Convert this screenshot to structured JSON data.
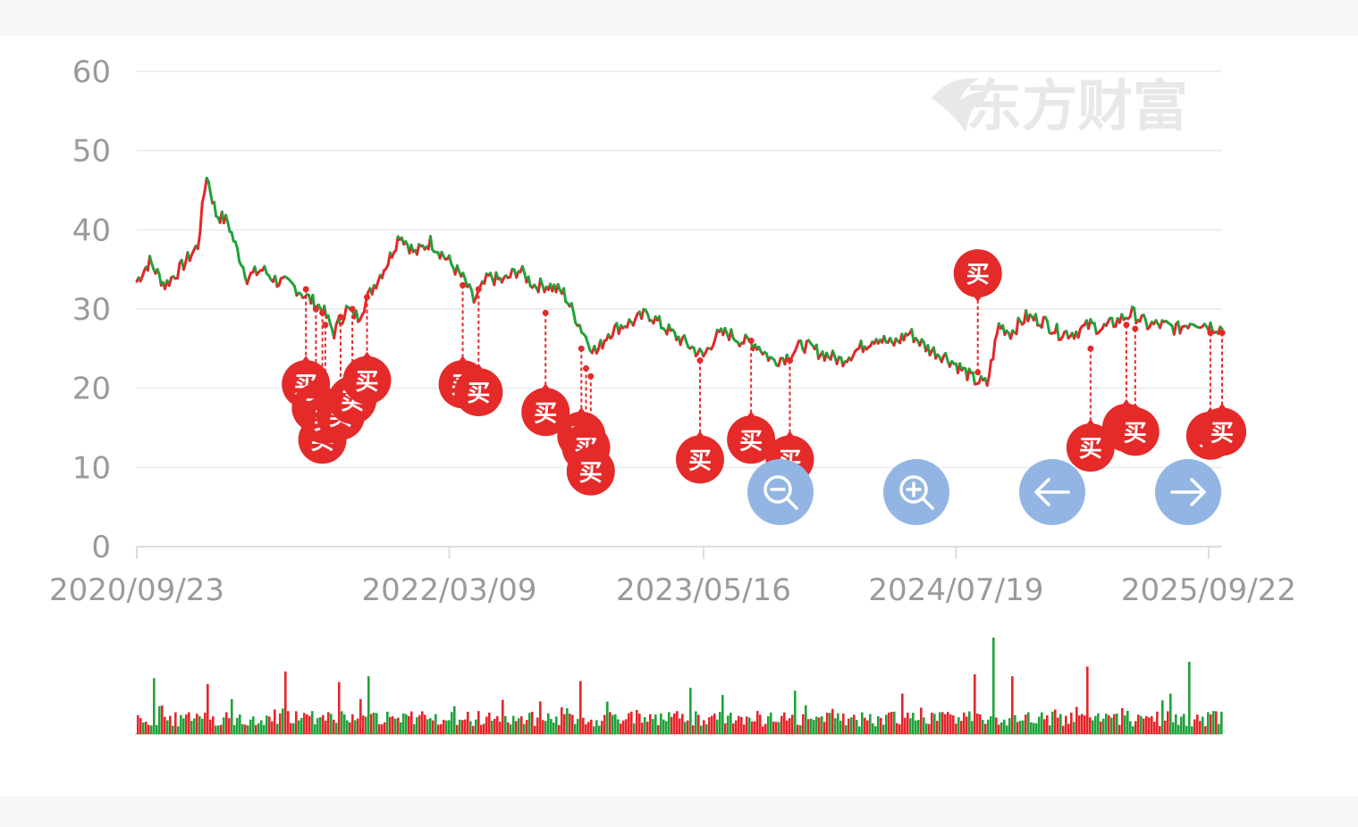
{
  "watermark": {
    "text": "东方财富"
  },
  "controls": {
    "zoom_out": "zoom-out",
    "zoom_in": "zoom-in",
    "prev": "arrow-left",
    "next": "arrow-right",
    "color": "#93b5e3"
  },
  "colors": {
    "up": "#e5262a",
    "down": "#1fa33a",
    "marker": "#e52a2a",
    "grid": "#eeeeee"
  },
  "chart_data": {
    "type": "line",
    "title": "",
    "xlabel": "",
    "ylabel": "",
    "ylim": [
      0,
      60
    ],
    "y_ticks": [
      "0",
      "10",
      "20",
      "30",
      "40",
      "50",
      "60"
    ],
    "x_ticks": [
      "2020/09/23",
      "2022/03/09",
      "2023/05/16",
      "2024/07/19",
      "2025/09/22"
    ],
    "x_range": [
      "2020/09/23",
      "2025/10/15"
    ],
    "grid": true,
    "legend": "none",
    "series": [
      {
        "values": [
          [
            "2020/09/23",
            33.5
          ],
          [
            "2020/10/15",
            36.0
          ],
          [
            "2020/11/10",
            33.0
          ],
          [
            "2020/12/05",
            35.0
          ],
          [
            "2021/01/05",
            38.0
          ],
          [
            "2021/01/20",
            47.0
          ],
          [
            "2021/02/05",
            42.0
          ],
          [
            "2021/02/25",
            41.0
          ],
          [
            "2021/03/10",
            38.0
          ],
          [
            "2021/03/30",
            34.0
          ],
          [
            "2021/04/25",
            35.0
          ],
          [
            "2021/05/20",
            33.5
          ],
          [
            "2021/06/15",
            33.0
          ],
          [
            "2021/07/10",
            31.5
          ],
          [
            "2021/08/05",
            30.0
          ],
          [
            "2021/08/25",
            27.0
          ],
          [
            "2021/09/15",
            30.0
          ],
          [
            "2021/10/05",
            29.0
          ],
          [
            "2021/11/01",
            33.0
          ],
          [
            "2021/11/25",
            36.0
          ],
          [
            "2021/12/15",
            39.5
          ],
          [
            "2022/01/10",
            37.0
          ],
          [
            "2022/02/05",
            38.5
          ],
          [
            "2022/03/09",
            36.0
          ],
          [
            "2022/04/05",
            33.5
          ],
          [
            "2022/04/20",
            31.0
          ],
          [
            "2022/05/15",
            34.0
          ],
          [
            "2022/06/10",
            33.5
          ],
          [
            "2022/07/05",
            35.0
          ],
          [
            "2022/08/01",
            33.0
          ],
          [
            "2022/08/25",
            33.0
          ],
          [
            "2022/09/20",
            32.0
          ],
          [
            "2022/10/10",
            29.0
          ],
          [
            "2022/10/31",
            26.0
          ],
          [
            "2022/11/15",
            24.5
          ],
          [
            "2022/12/05",
            27.0
          ],
          [
            "2022/12/30",
            28.0
          ],
          [
            "2023/01/20",
            28.5
          ],
          [
            "2023/02/10",
            29.5
          ],
          [
            "2023/03/05",
            28.0
          ],
          [
            "2023/03/31",
            26.5
          ],
          [
            "2023/04/20",
            25.5
          ],
          [
            "2023/05/16",
            24.0
          ],
          [
            "2023/06/05",
            26.5
          ],
          [
            "2023/06/25",
            27.0
          ],
          [
            "2023/07/20",
            26.0
          ],
          [
            "2023/08/15",
            25.5
          ],
          [
            "2023/09/10",
            23.5
          ],
          [
            "2023/10/05",
            24.0
          ],
          [
            "2023/11/01",
            25.5
          ],
          [
            "2023/12/01",
            24.5
          ],
          [
            "2024/01/05",
            23.5
          ],
          [
            "2024/02/05",
            25.0
          ],
          [
            "2024/03/05",
            26.5
          ],
          [
            "2024/04/01",
            25.5
          ],
          [
            "2024/05/01",
            27.0
          ],
          [
            "2024/06/01",
            25.0
          ],
          [
            "2024/07/01",
            24.0
          ],
          [
            "2024/07/19",
            23.0
          ],
          [
            "2024/08/20",
            21.0
          ],
          [
            "2024/09/10",
            20.5
          ],
          [
            "2024/09/30",
            28.0
          ],
          [
            "2024/10/20",
            27.0
          ],
          [
            "2024/11/15",
            29.0
          ],
          [
            "2024/12/15",
            28.5
          ],
          [
            "2025/01/10",
            27.0
          ],
          [
            "2025/02/05",
            27.0
          ],
          [
            "2025/03/05",
            28.0
          ],
          [
            "2025/03/25",
            27.5
          ],
          [
            "2025/04/20",
            28.5
          ],
          [
            "2025/05/15",
            29.5
          ],
          [
            "2025/06/10",
            28.0
          ],
          [
            "2025/07/05",
            28.0
          ],
          [
            "2025/08/01",
            27.5
          ],
          [
            "2025/08/25",
            28.5
          ],
          [
            "2025/09/22",
            28.0
          ],
          [
            "2025/10/15",
            27.5
          ]
        ]
      }
    ],
    "buy_markers": {
      "label": "买",
      "points": [
        {
          "date": "2021/07/08",
          "price": 32.5,
          "bubble": 20.5
        },
        {
          "date": "2021/07/25",
          "price": 30.0,
          "bubble": 17.5
        },
        {
          "date": "2021/08/05",
          "price": 29.5,
          "bubble": 13.5
        },
        {
          "date": "2021/08/10",
          "price": 28.0,
          "bubble": 16.0
        },
        {
          "date": "2021/09/05",
          "price": 29.0,
          "bubble": 16.5
        },
        {
          "date": "2021/09/25",
          "price": 30.0,
          "bubble": 18.5
        },
        {
          "date": "2021/10/20",
          "price": 31.5,
          "bubble": 21.0
        },
        {
          "date": "2022/04/01",
          "price": 33.0,
          "bubble": 20.5
        },
        {
          "date": "2022/04/28",
          "price": 32.5,
          "bubble": 19.5
        },
        {
          "date": "2022/08/20",
          "price": 29.5,
          "bubble": 17.0
        },
        {
          "date": "2022/10/20",
          "price": 25.0,
          "bubble": 14.0
        },
        {
          "date": "2022/10/28",
          "price": 22.5,
          "bubble": 12.5
        },
        {
          "date": "2022/11/05",
          "price": 21.5,
          "bubble": 9.5
        },
        {
          "date": "2023/05/10",
          "price": 23.5,
          "bubble": 11.0
        },
        {
          "date": "2023/08/05",
          "price": 26.0,
          "bubble": 13.5
        },
        {
          "date": "2023/10/10",
          "price": 23.5,
          "bubble": 11.0
        },
        {
          "date": "2024/08/25",
          "price": 22.0,
          "bubble": 34.5
        },
        {
          "date": "2025/03/05",
          "price": 25.0,
          "bubble": 12.5
        },
        {
          "date": "2025/05/05",
          "price": 28.0,
          "bubble": 15.0
        },
        {
          "date": "2025/05/20",
          "price": 27.5,
          "bubble": 14.5
        },
        {
          "date": "2025/09/25",
          "price": 27.0,
          "bubble": 14.0
        },
        {
          "date": "2025/10/15",
          "price": 27.0,
          "bubble": 14.5
        }
      ]
    }
  }
}
